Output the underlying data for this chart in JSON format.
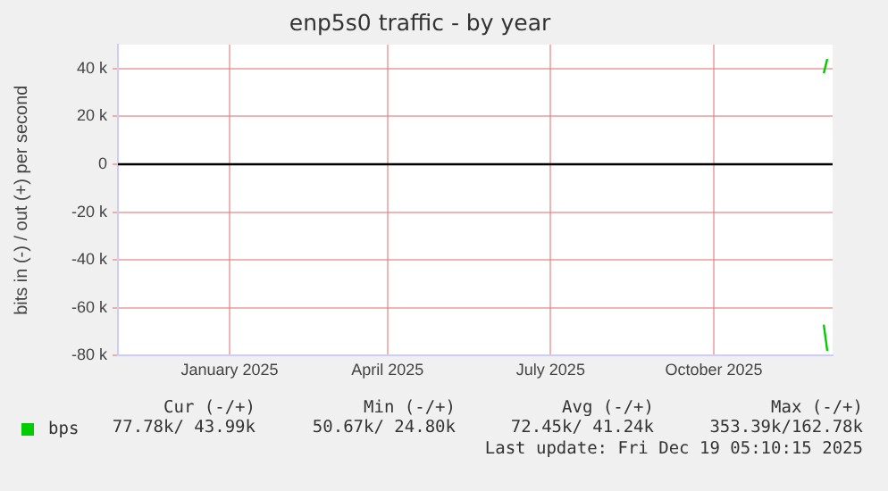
{
  "chart_data": {
    "type": "line",
    "title": "enp5s0 traffic - by year",
    "ylabel": "bits in (-) / out (+) per second",
    "xlim": [
      "2024-11-14",
      "2025-12-22"
    ],
    "xticks": [
      {
        "value": "2025-01-16",
        "label": "January 2025"
      },
      {
        "value": "2025-04-15",
        "label": "April 2025"
      },
      {
        "value": "2025-07-16",
        "label": "July 2025"
      },
      {
        "value": "2025-10-16",
        "label": "October 2025"
      }
    ],
    "ylim": [
      -80000,
      50000
    ],
    "yticks": [
      {
        "value": -80000,
        "label": "-80 k"
      },
      {
        "value": -60000,
        "label": "-60 k"
      },
      {
        "value": -40000,
        "label": "-40 k"
      },
      {
        "value": -20000,
        "label": "-20 k"
      },
      {
        "value": 0,
        "label": "0"
      },
      {
        "value": 20000,
        "label": "20 k"
      },
      {
        "value": 40000,
        "label": "40 k"
      }
    ],
    "series": [
      {
        "name": "bps",
        "color": "#00cc00",
        "x": [
          "2025-12-17",
          "2025-12-19"
        ],
        "values": [
          -67000,
          -78000
        ]
      },
      {
        "color": "#00cc00",
        "x": [
          "2025-12-17",
          "2025-12-19"
        ],
        "values": [
          38000,
          44000
        ]
      }
    ],
    "ref_lines": [
      {
        "axis": "y",
        "value": 0,
        "color": "#000000"
      }
    ],
    "grid": true,
    "legend": "bottom left",
    "marker": "none",
    "line_style": "solid",
    "annotations": [
      "Cur (-/+)",
      "Min (-/+)",
      "Avg (-/+)",
      "Max (-/+)",
      "77.78k/ 43.99k",
      "50.67k/ 24.80k",
      "72.45k/ 41.24k",
      "353.39k/162.78k",
      "Last update: Fri Dec 19 05:10:15 2025"
    ]
  }
}
